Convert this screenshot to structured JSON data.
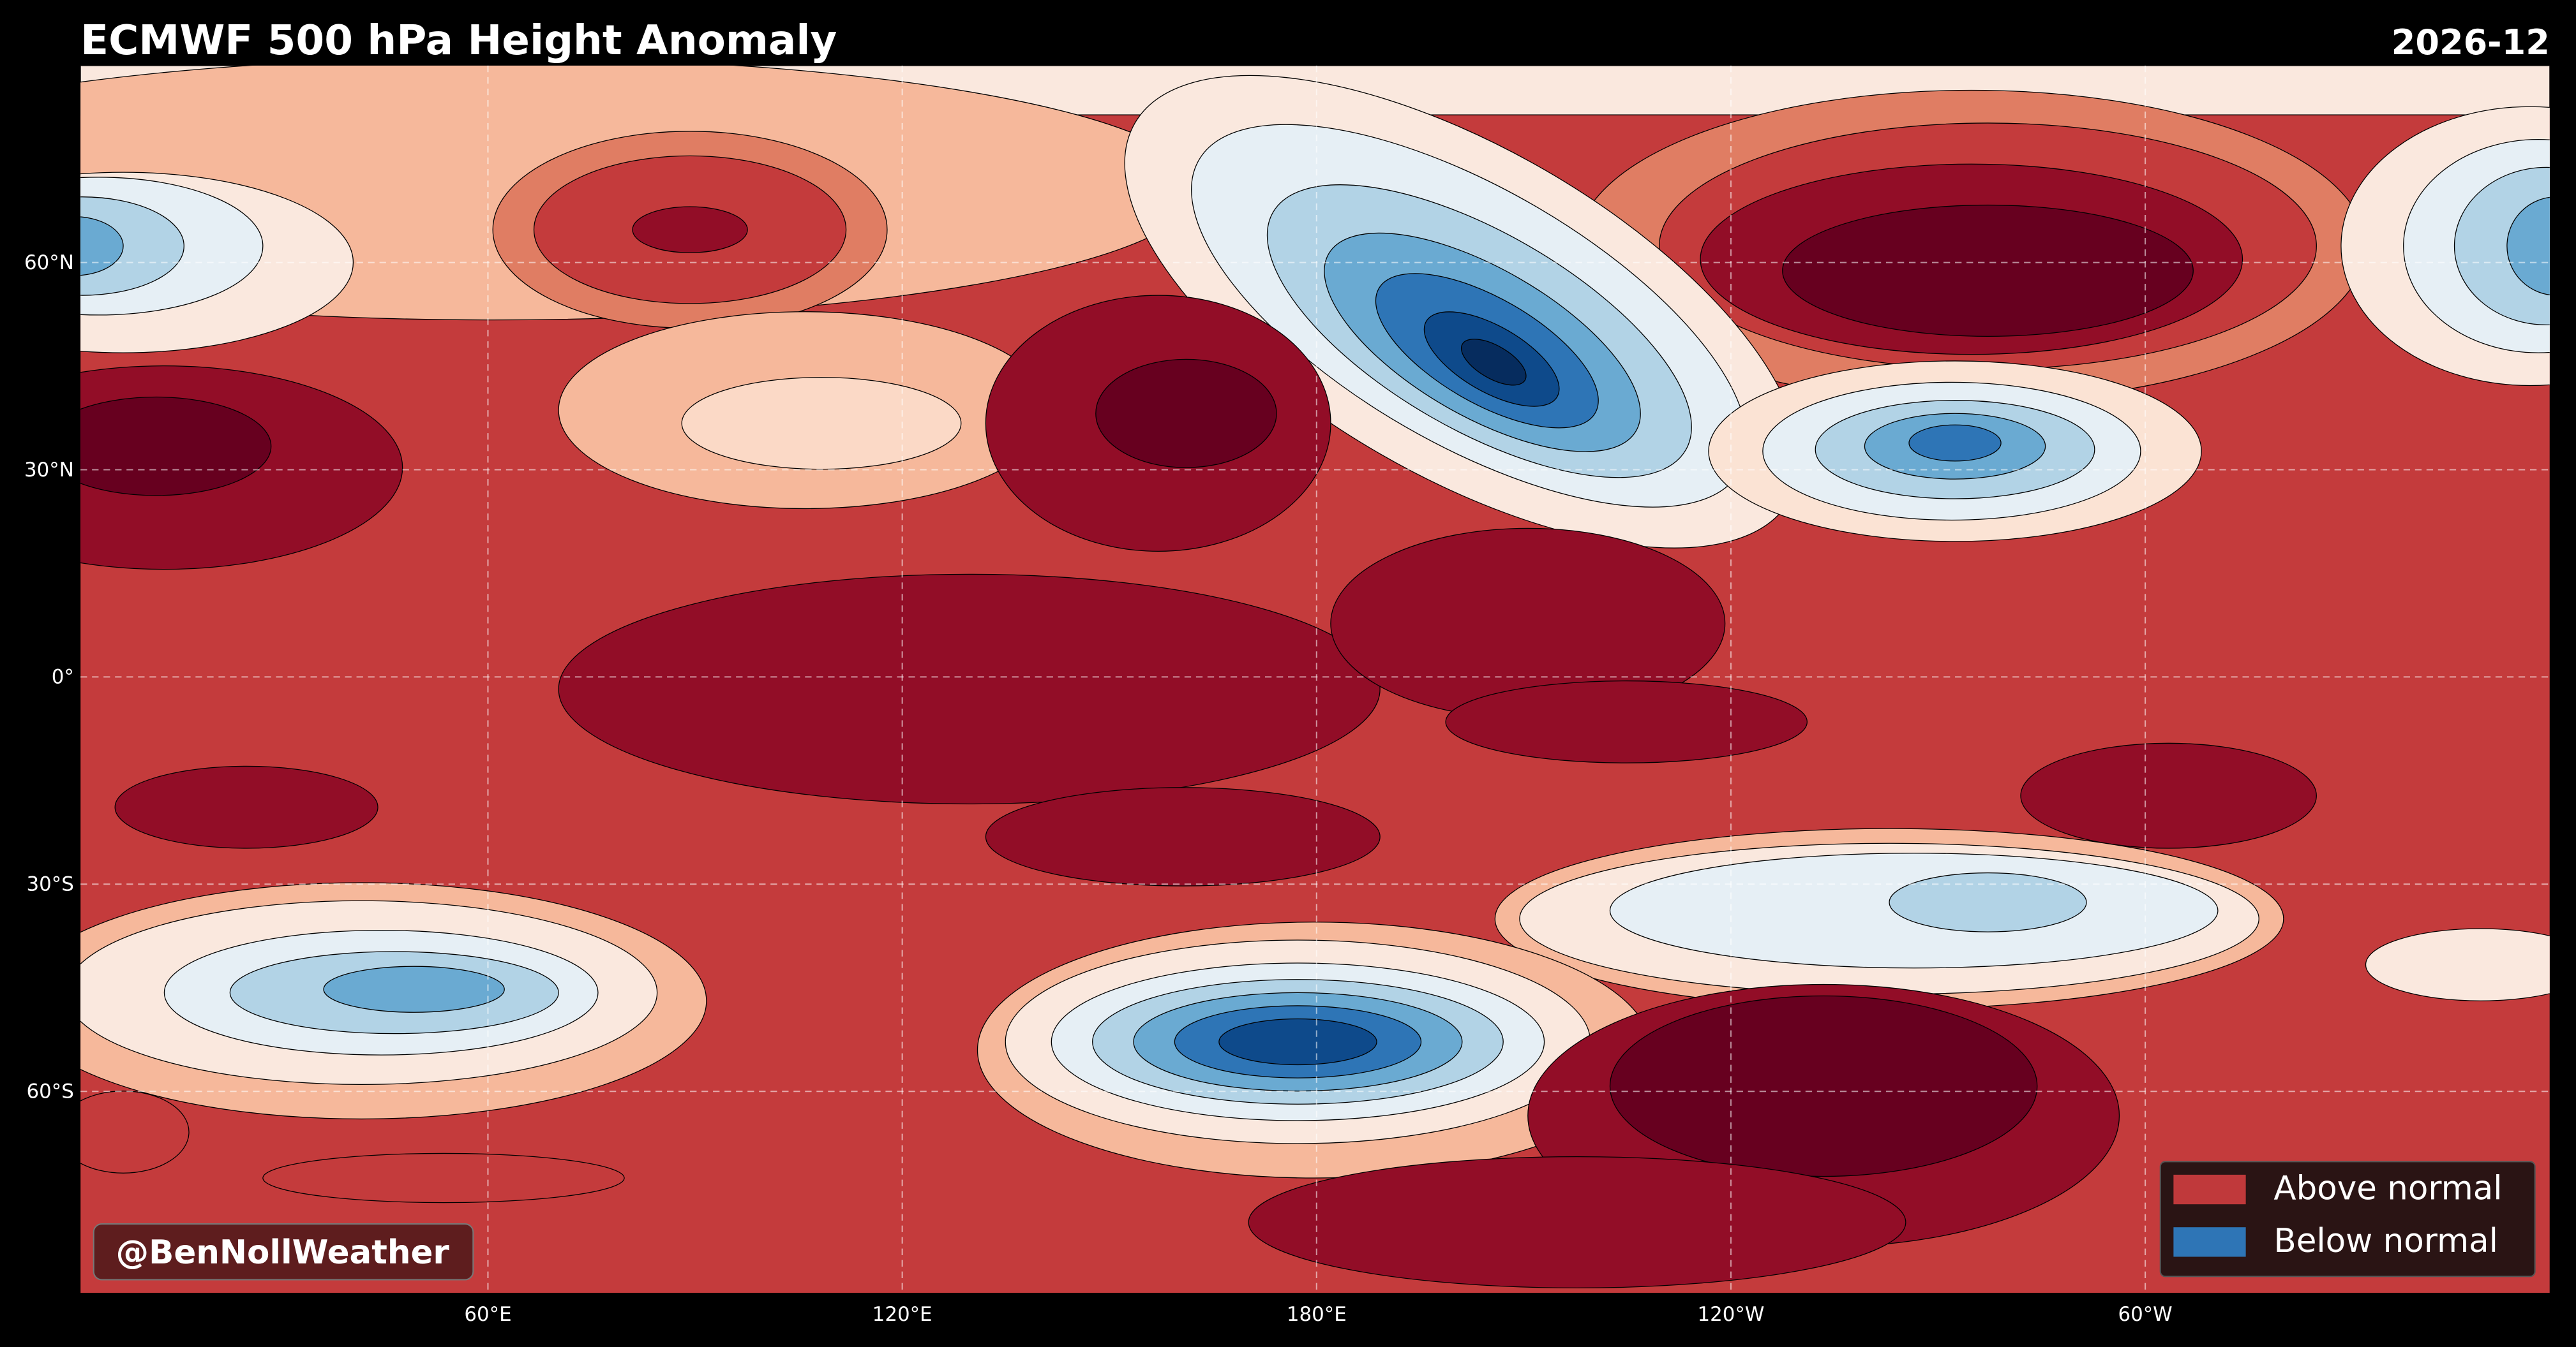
{
  "header": {
    "title": "ECMWF 500 hPa Height Anomaly",
    "date": "2026-12"
  },
  "map": {
    "lat_labels": [
      "60°N",
      "30°N",
      "0°",
      "30°S",
      "60°S"
    ],
    "lon_labels": [
      "60°E",
      "120°E",
      "180°E",
      "120°W",
      "60°W"
    ]
  },
  "legend": [
    {
      "label": "Above normal",
      "color": "#c0393b"
    },
    {
      "label": "Below normal",
      "color": "#2e75b6"
    }
  ],
  "watermark": "@BenNollWeather"
}
